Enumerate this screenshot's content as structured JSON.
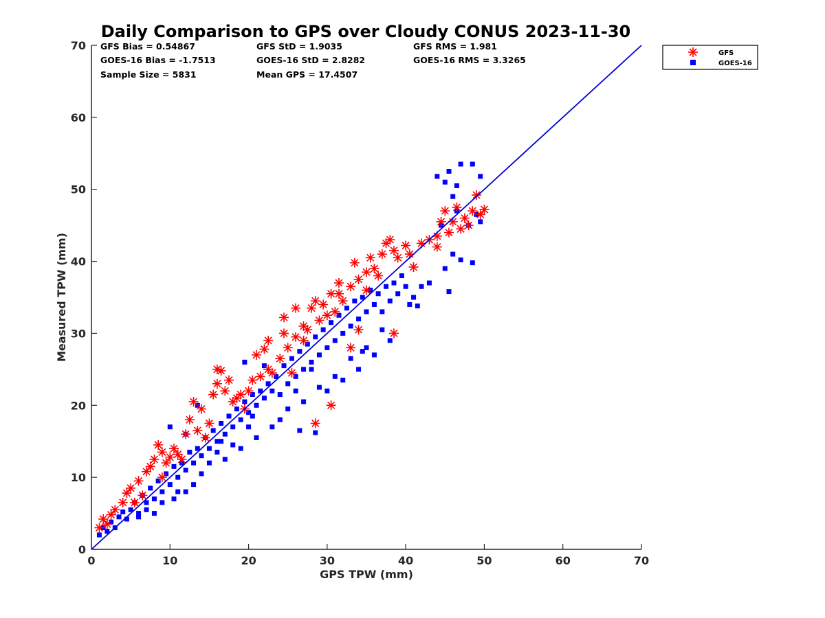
{
  "chart_data": {
    "type": "scatter",
    "title": "Daily Comparison to GPS over Cloudy CONUS 2023-11-30",
    "xlabel": "GPS TPW (mm)",
    "ylabel": "Measured TPW (mm)",
    "xlim": [
      0,
      70
    ],
    "ylim": [
      0,
      70
    ],
    "xticks": [
      "0",
      "10",
      "20",
      "30",
      "40",
      "50",
      "60",
      "70"
    ],
    "yticks": [
      "0",
      "10",
      "20",
      "30",
      "40",
      "50",
      "60",
      "70"
    ],
    "grid": false,
    "legend_position": "outside top-right",
    "stats": [
      [
        "GFS Bias = 0.54867",
        "GFS StD = 1.9035",
        "GFS RMS = 1.981"
      ],
      [
        "GOES-16 Bias = -1.7513",
        "GOES-16 StD = 2.8282",
        "GOES-16 RMS = 3.3265"
      ],
      [
        "Sample Size = 5831",
        "Mean GPS = 17.4507",
        ""
      ]
    ],
    "reference_line": {
      "x": [
        0,
        70
      ],
      "y": [
        0,
        70
      ],
      "color": "#0000d8"
    },
    "series": [
      {
        "name": "GFS",
        "marker": "asterisk",
        "color": "#ff0000",
        "points": [
          [
            1,
            3
          ],
          [
            1.5,
            4.2
          ],
          [
            2,
            3.5
          ],
          [
            2.5,
            4.8
          ],
          [
            3,
            5.5
          ],
          [
            4,
            6.5
          ],
          [
            4.5,
            7.8
          ],
          [
            5,
            8.5
          ],
          [
            6,
            9.5
          ],
          [
            7,
            10.8
          ],
          [
            7.5,
            11.5
          ],
          [
            8,
            12.5
          ],
          [
            8.5,
            14.5
          ],
          [
            9,
            13.5
          ],
          [
            9.5,
            12
          ],
          [
            10,
            12.8
          ],
          [
            10.5,
            14
          ],
          [
            11,
            13.2
          ],
          [
            12,
            16
          ],
          [
            12.5,
            18
          ],
          [
            13,
            20.5
          ],
          [
            13.5,
            16.5
          ],
          [
            14,
            19.5
          ],
          [
            15,
            17.5
          ],
          [
            15.5,
            21.5
          ],
          [
            16,
            23
          ],
          [
            16.5,
            24.8
          ],
          [
            17,
            22
          ],
          [
            17.5,
            23.5
          ],
          [
            18,
            20.5
          ],
          [
            19,
            21.5
          ],
          [
            20,
            22
          ],
          [
            20.5,
            23.5
          ],
          [
            21,
            27
          ],
          [
            22,
            27.8
          ],
          [
            22.5,
            25
          ],
          [
            23,
            24.5
          ],
          [
            24,
            26.5
          ],
          [
            24.5,
            32.2
          ],
          [
            24.5,
            30
          ],
          [
            25,
            28
          ],
          [
            26,
            29.5
          ],
          [
            27,
            31
          ],
          [
            27.5,
            30.5
          ],
          [
            28,
            33.5
          ],
          [
            28.5,
            34.5
          ],
          [
            29,
            31.8
          ],
          [
            30,
            32.5
          ],
          [
            30.5,
            35.5
          ],
          [
            31,
            33
          ],
          [
            31.5,
            37
          ],
          [
            32,
            34.5
          ],
          [
            33,
            36.5
          ],
          [
            33.5,
            39.8
          ],
          [
            34,
            37.5
          ],
          [
            35,
            38.5
          ],
          [
            35.5,
            40.5
          ],
          [
            36,
            39
          ],
          [
            37,
            41
          ],
          [
            37.5,
            42.5
          ],
          [
            38,
            43
          ],
          [
            38.5,
            41.5
          ],
          [
            39,
            40.5
          ],
          [
            40,
            42.2
          ],
          [
            41,
            39.2
          ],
          [
            42,
            42.5
          ],
          [
            43,
            43
          ],
          [
            44,
            42
          ],
          [
            44.5,
            45.5
          ],
          [
            45,
            47
          ],
          [
            45.5,
            44
          ],
          [
            46,
            45.5
          ],
          [
            46.5,
            47.5
          ],
          [
            47,
            44.5
          ],
          [
            47.5,
            46
          ],
          [
            48,
            45
          ],
          [
            48.5,
            47
          ],
          [
            49,
            49.2
          ],
          [
            49.5,
            46.5
          ],
          [
            50,
            47.2
          ],
          [
            30.5,
            20
          ],
          [
            28.5,
            17.5
          ],
          [
            34,
            30.5
          ],
          [
            38.5,
            30
          ],
          [
            25.5,
            24.5
          ],
          [
            16,
            25
          ],
          [
            26,
            33.5
          ],
          [
            31.5,
            35.5
          ],
          [
            33,
            28
          ],
          [
            19.5,
            19.5
          ],
          [
            11.5,
            12.5
          ],
          [
            6.5,
            7.5
          ],
          [
            5.5,
            6.5
          ],
          [
            9,
            10
          ],
          [
            14.5,
            15.5
          ],
          [
            21.5,
            24
          ],
          [
            18.5,
            21
          ],
          [
            22.5,
            29
          ],
          [
            27,
            29
          ],
          [
            29.5,
            34
          ],
          [
            36.5,
            38
          ],
          [
            40.5,
            41
          ],
          [
            44,
            43.5
          ],
          [
            35,
            36
          ]
        ]
      },
      {
        "name": "GOES-16",
        "marker": "square",
        "color": "#0000ff",
        "points": [
          [
            1,
            2
          ],
          [
            1.5,
            3
          ],
          [
            2,
            2.5
          ],
          [
            2.5,
            3.8
          ],
          [
            3,
            3
          ],
          [
            3.5,
            4.5
          ],
          [
            4,
            5.2
          ],
          [
            4.5,
            4.2
          ],
          [
            5,
            5.5
          ],
          [
            5.5,
            6.5
          ],
          [
            6,
            5
          ],
          [
            6.5,
            7.5
          ],
          [
            7,
            6.5
          ],
          [
            7.5,
            8.5
          ],
          [
            8,
            7
          ],
          [
            8.5,
            9.5
          ],
          [
            9,
            8
          ],
          [
            9.5,
            10.5
          ],
          [
            10,
            9
          ],
          [
            10.5,
            11.5
          ],
          [
            11,
            10
          ],
          [
            11.5,
            12
          ],
          [
            12,
            11
          ],
          [
            12.5,
            13.5
          ],
          [
            13,
            12
          ],
          [
            13.5,
            14
          ],
          [
            14,
            13
          ],
          [
            14.5,
            15.5
          ],
          [
            15,
            14
          ],
          [
            15.5,
            16.5
          ],
          [
            16,
            15
          ],
          [
            16.5,
            17.5
          ],
          [
            17,
            16
          ],
          [
            17.5,
            18.5
          ],
          [
            18,
            17
          ],
          [
            18.5,
            19.5
          ],
          [
            19,
            18
          ],
          [
            19.5,
            20.5
          ],
          [
            20,
            19
          ],
          [
            20.5,
            21.5
          ],
          [
            21,
            20
          ],
          [
            21.5,
            22
          ],
          [
            22,
            21
          ],
          [
            22.5,
            23
          ],
          [
            23,
            22
          ],
          [
            23.5,
            24
          ],
          [
            24,
            21.5
          ],
          [
            24.5,
            25.5
          ],
          [
            25,
            23
          ],
          [
            25.5,
            26.5
          ],
          [
            26,
            24
          ],
          [
            26.5,
            27.5
          ],
          [
            27,
            25
          ],
          [
            27.5,
            28.5
          ],
          [
            28,
            26
          ],
          [
            28.5,
            29.5
          ],
          [
            29,
            27
          ],
          [
            29.5,
            30.5
          ],
          [
            30,
            28
          ],
          [
            30.5,
            31.5
          ],
          [
            31,
            29
          ],
          [
            31.5,
            32.5
          ],
          [
            32,
            30
          ],
          [
            32.5,
            33.5
          ],
          [
            33,
            31
          ],
          [
            33.5,
            34.5
          ],
          [
            34,
            32
          ],
          [
            34.5,
            35
          ],
          [
            35,
            33
          ],
          [
            35.5,
            36
          ],
          [
            36,
            34
          ],
          [
            36.5,
            35.5
          ],
          [
            37,
            33
          ],
          [
            37.5,
            36.5
          ],
          [
            38,
            34.5
          ],
          [
            38.5,
            37
          ],
          [
            39,
            35.5
          ],
          [
            39.5,
            38
          ],
          [
            40,
            36.5
          ],
          [
            40.5,
            34
          ],
          [
            41,
            35
          ],
          [
            41.5,
            33.8
          ],
          [
            42,
            36.5
          ],
          [
            43,
            37
          ],
          [
            44.5,
            45
          ],
          [
            45,
            39
          ],
          [
            45.5,
            35.8
          ],
          [
            46,
            41
          ],
          [
            44,
            51.8
          ],
          [
            45,
            51
          ],
          [
            45.5,
            52.5
          ],
          [
            46,
            49
          ],
          [
            46.5,
            50.5
          ],
          [
            47,
            53.5
          ],
          [
            48.5,
            53.5
          ],
          [
            49.5,
            51.8
          ],
          [
            47,
            40.2
          ],
          [
            48.5,
            39.8
          ],
          [
            48,
            45
          ],
          [
            49,
            46.5
          ],
          [
            49.5,
            45.5
          ],
          [
            46.5,
            47
          ],
          [
            18,
            14.5
          ],
          [
            20,
            17
          ],
          [
            25,
            19.5
          ],
          [
            26.5,
            16.5
          ],
          [
            28.5,
            16.2
          ],
          [
            30,
            22
          ],
          [
            32,
            23.5
          ],
          [
            34,
            25
          ],
          [
            36,
            27
          ],
          [
            38,
            29
          ],
          [
            15,
            12
          ],
          [
            16,
            13.5
          ],
          [
            10.5,
            7
          ],
          [
            13,
            9
          ],
          [
            14,
            10.5
          ],
          [
            12,
            8
          ],
          [
            8,
            5
          ],
          [
            6,
            4.5
          ],
          [
            7,
            5.5
          ],
          [
            9,
            6.5
          ],
          [
            11,
            8
          ],
          [
            17,
            12.5
          ],
          [
            19,
            14
          ],
          [
            21,
            15.5
          ],
          [
            23,
            17
          ],
          [
            24,
            18
          ],
          [
            13.5,
            20
          ],
          [
            10,
            17
          ],
          [
            12,
            16
          ],
          [
            19.5,
            26
          ],
          [
            22,
            25.5
          ],
          [
            27,
            20.5
          ],
          [
            29,
            22.5
          ],
          [
            31,
            24
          ],
          [
            33,
            26.5
          ],
          [
            35,
            28
          ],
          [
            37,
            30.5
          ],
          [
            34.5,
            27.5
          ],
          [
            28,
            25
          ],
          [
            26,
            22
          ],
          [
            20.5,
            18.5
          ],
          [
            16.5,
            15
          ]
        ]
      }
    ]
  }
}
